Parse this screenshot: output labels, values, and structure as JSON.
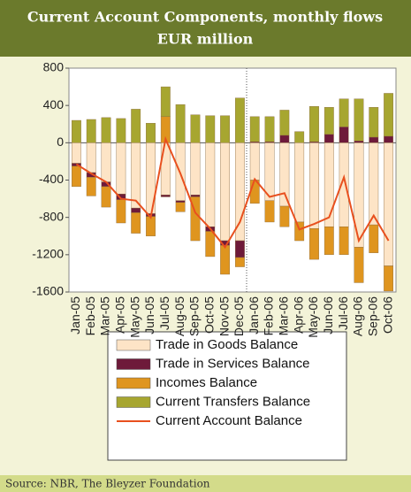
{
  "chart_data": {
    "type": "bar",
    "title": "Current Account Components, monthly flows",
    "subtitle": "EUR million",
    "source": "Source: NBR, The Bleyzer Foundation",
    "categories": [
      "Jan-05",
      "Feb-05",
      "Mar-05",
      "Apr-05",
      "May-05",
      "Jun-05",
      "Jul-05",
      "Aug-05",
      "Sep-05",
      "Oct-05",
      "Nov-05",
      "Dec-05",
      "Jan-06",
      "Feb-06",
      "Mar-06",
      "Apr-06",
      "May-06",
      "Jun-06",
      "Jul-06",
      "Aug-06",
      "Sep-06",
      "Oct-06"
    ],
    "series": [
      {
        "name": "Trade in Goods Balance",
        "type": "bar",
        "color": "#fde4c6",
        "values": [
          -220,
          -320,
          -420,
          -550,
          -700,
          -760,
          -560,
          -620,
          -560,
          -900,
          -1050,
          -1050,
          -400,
          -620,
          -680,
          -850,
          -920,
          -900,
          -900,
          -1120,
          -880,
          -1320
        ]
      },
      {
        "name": "Trade in Services Balance",
        "type": "bar",
        "color": "#6e1a3a",
        "values": [
          -30,
          -50,
          -50,
          -60,
          -50,
          -30,
          -20,
          -20,
          -20,
          -50,
          -50,
          -180,
          10,
          10,
          80,
          0,
          10,
          90,
          170,
          20,
          60,
          70
        ]
      },
      {
        "name": "Incomes Balance",
        "type": "bar",
        "color": "#df951f",
        "values": [
          -220,
          -200,
          -220,
          -250,
          -220,
          -210,
          280,
          -100,
          -470,
          -270,
          -310,
          -100,
          -250,
          -230,
          -220,
          -200,
          -330,
          -300,
          -300,
          -380,
          -300,
          -270
        ]
      },
      {
        "name": "Current Transfers Balance",
        "type": "bar",
        "color": "#a7a630",
        "values": [
          240,
          250,
          270,
          260,
          360,
          210,
          320,
          410,
          300,
          290,
          290,
          480,
          270,
          270,
          270,
          120,
          380,
          290,
          300,
          450,
          320,
          460
        ]
      },
      {
        "name": "Current Account Balance",
        "type": "line",
        "color": "#e8501e",
        "values": [
          -230,
          -330,
          -420,
          -600,
          -620,
          -800,
          40,
          -330,
          -750,
          -920,
          -1120,
          -850,
          -390,
          -580,
          -540,
          -930,
          -870,
          -800,
          -370,
          -1050,
          -780,
          -1050
        ]
      }
    ],
    "ylim": [
      -1600,
      800
    ],
    "yticks": [
      -1600,
      -1200,
      -800,
      -400,
      0,
      400,
      800
    ]
  }
}
